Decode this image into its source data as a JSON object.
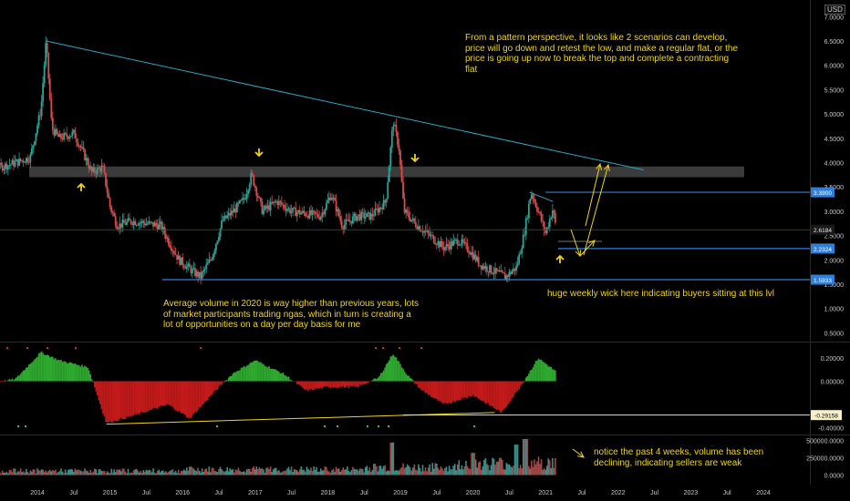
{
  "currency": "USD",
  "annotations": {
    "pattern_note": "From a pattern perspective, it looks like 2 scenarios can develop, price will go down and retest the low, and make a regular flat, or the price is going up now to break the top and complete a contracting flat",
    "volume_note": "Average volume in 2020 is way higher than previous years, lots of market participants trading ngas, which in turn is creating a lot of opportunities on a day per day basis for me",
    "wick_note": "huge weekly wick here indicating buyers sitting at this lvl",
    "decline_note": "notice the past 4 weeks, volume has been declining, indicating sellers are weak"
  },
  "chart_data": [
    {
      "type": "line",
      "name": "price",
      "x_ticks": [
        "2014",
        "Jul",
        "2015",
        "Jul",
        "2016",
        "Jul",
        "2017",
        "Jul",
        "2018",
        "Jul",
        "2019",
        "Jul",
        "2020",
        "Jul",
        "2021",
        "Jul",
        "2022",
        "Jul",
        "2023",
        "Jul",
        "2024"
      ],
      "y_ticks": [
        "7.0000",
        "6.5000",
        "6.0000",
        "5.5000",
        "5.0000",
        "4.5000",
        "4.0000",
        "3.5000",
        "3.0000",
        "2.5000",
        "2.0000",
        "1.5000",
        "1.0000",
        "0.5000"
      ],
      "ylim": [
        0.4,
        7.1
      ],
      "x_range": [
        2013.0,
        2024.5
      ],
      "series": [
        {
          "values": [
            [
              2013.0,
              3.55
            ],
            [
              2013.3,
              3.85
            ],
            [
              2013.6,
              3.95
            ],
            [
              2013.9,
              4.1
            ],
            [
              2014.05,
              5.1
            ],
            [
              2014.12,
              6.5
            ],
            [
              2014.2,
              4.7
            ],
            [
              2014.3,
              4.5
            ],
            [
              2014.5,
              4.6
            ],
            [
              2014.6,
              4.3
            ],
            [
              2014.75,
              3.8
            ],
            [
              2014.9,
              3.9
            ],
            [
              2015.0,
              3.1
            ],
            [
              2015.1,
              2.7
            ],
            [
              2015.3,
              2.8
            ],
            [
              2015.5,
              2.75
            ],
            [
              2015.7,
              2.7
            ],
            [
              2015.8,
              2.4
            ],
            [
              2015.95,
              2.0
            ],
            [
              2016.15,
              1.75
            ],
            [
              2016.25,
              1.65
            ],
            [
              2016.4,
              2.05
            ],
            [
              2016.55,
              2.8
            ],
            [
              2016.7,
              3.0
            ],
            [
              2016.85,
              3.25
            ],
            [
              2016.95,
              3.75
            ],
            [
              2017.1,
              3.0
            ],
            [
              2017.3,
              3.2
            ],
            [
              2017.5,
              3.0
            ],
            [
              2017.7,
              2.95
            ],
            [
              2017.9,
              2.9
            ],
            [
              2018.05,
              3.35
            ],
            [
              2018.2,
              2.7
            ],
            [
              2018.4,
              2.9
            ],
            [
              2018.6,
              2.9
            ],
            [
              2018.8,
              3.2
            ],
            [
              2018.9,
              4.85
            ],
            [
              2018.98,
              4.3
            ],
            [
              2019.05,
              3.0
            ],
            [
              2019.2,
              2.75
            ],
            [
              2019.4,
              2.5
            ],
            [
              2019.6,
              2.25
            ],
            [
              2019.8,
              2.4
            ],
            [
              2019.95,
              2.2
            ],
            [
              2020.1,
              1.9
            ],
            [
              2020.3,
              1.75
            ],
            [
              2020.45,
              1.65
            ],
            [
              2020.6,
              1.85
            ],
            [
              2020.7,
              2.5
            ],
            [
              2020.8,
              3.4
            ],
            [
              2020.9,
              3.0
            ],
            [
              2021.0,
              2.55
            ],
            [
              2021.1,
              3.05
            ],
            [
              2021.15,
              2.6
            ]
          ]
        }
      ],
      "last_price": "2.6184",
      "price_labels": [
        "3.3900",
        "2.2324",
        "1.5933"
      ],
      "support_level": 1.5933,
      "resistance_level": 3.39,
      "low_level": 2.2324,
      "zone": [
        3.7,
        3.92
      ],
      "trendline": [
        [
          2014.12,
          6.5
        ],
        [
          2022.35,
          3.85
        ]
      ]
    },
    {
      "type": "bar",
      "name": "oscillator",
      "y_ticks": [
        "0.20000",
        "0.00000",
        "-0.40000"
      ],
      "ylim": [
        -0.42,
        0.32
      ],
      "last_value": "-0.29158",
      "divergence_line": [
        [
          2014.95,
          -0.37
        ],
        [
          2020.3,
          -0.27
        ]
      ]
    },
    {
      "type": "bar",
      "name": "volume",
      "y_ticks": [
        "500000.0000",
        "250000.0000",
        "0.0000"
      ],
      "ylim": [
        0,
        560000
      ]
    }
  ]
}
